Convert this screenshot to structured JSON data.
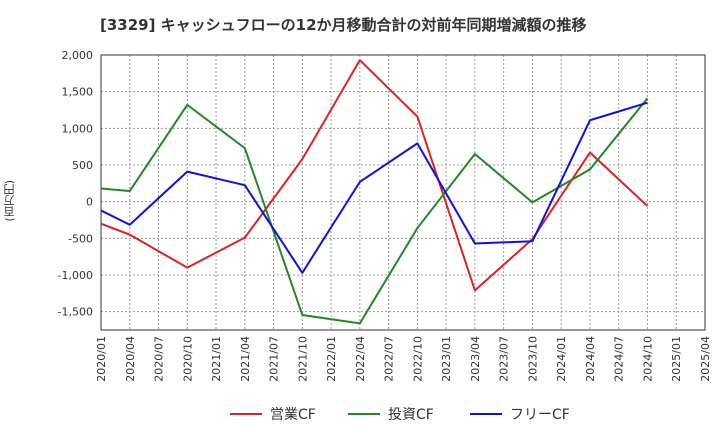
{
  "chart_data": {
    "type": "line",
    "title": "[3329]  キャッシュフローの12か月移動合計の対前年同期増減額の推移",
    "ylabel": "(百万円)",
    "xlabel": "",
    "ylim": [
      -1750,
      2000
    ],
    "yticks": [
      2000,
      1500,
      1000,
      500,
      0,
      -500,
      -1000,
      -1500
    ],
    "ytick_labels": [
      "2,000",
      "1,500",
      "1,000",
      "500",
      "0",
      "-500",
      "-1,000",
      "-1,500"
    ],
    "categories": [
      "2020/01",
      "2020/04",
      "2020/07",
      "2020/10",
      "2021/01",
      "2021/04",
      "2021/07",
      "2021/10",
      "2022/01",
      "2022/04",
      "2022/07",
      "2022/10",
      "2023/01",
      "2023/04",
      "2023/07",
      "2023/10",
      "2024/01",
      "2024/04",
      "2024/07",
      "2024/10",
      "2025/01",
      "2025/04"
    ],
    "legend_position": "bottom",
    "grid": true,
    "series": [
      {
        "name": "営業CF",
        "color": "#dd2222",
        "points": [
          [
            "2020/01",
            -300
          ],
          [
            "2020/04",
            -450
          ],
          [
            "2020/10",
            -900
          ],
          [
            "2021/04",
            -490
          ],
          [
            "2021/10",
            580
          ],
          [
            "2022/04",
            1930
          ],
          [
            "2022/10",
            1160
          ],
          [
            "2023/04",
            -1210
          ],
          [
            "2023/10",
            -510
          ],
          [
            "2024/04",
            670
          ],
          [
            "2024/10",
            -60
          ]
        ]
      },
      {
        "name": "投資CF",
        "color": "#228822",
        "points": [
          [
            "2020/01",
            180
          ],
          [
            "2020/04",
            145
          ],
          [
            "2020/10",
            1320
          ],
          [
            "2021/04",
            730
          ],
          [
            "2021/10",
            -1545
          ],
          [
            "2022/04",
            -1660
          ],
          [
            "2022/10",
            -360
          ],
          [
            "2023/04",
            650
          ],
          [
            "2023/10",
            -10
          ],
          [
            "2024/04",
            440
          ],
          [
            "2024/10",
            1410
          ]
        ]
      },
      {
        "name": "フリーCF",
        "color": "#1111dd",
        "points": [
          [
            "2020/01",
            -120
          ],
          [
            "2020/04",
            -315
          ],
          [
            "2020/10",
            410
          ],
          [
            "2021/04",
            225
          ],
          [
            "2021/10",
            -970
          ],
          [
            "2022/04",
            270
          ],
          [
            "2022/10",
            795
          ],
          [
            "2023/04",
            -570
          ],
          [
            "2023/10",
            -540
          ],
          [
            "2024/04",
            1110
          ],
          [
            "2024/10",
            1350
          ]
        ]
      }
    ]
  }
}
